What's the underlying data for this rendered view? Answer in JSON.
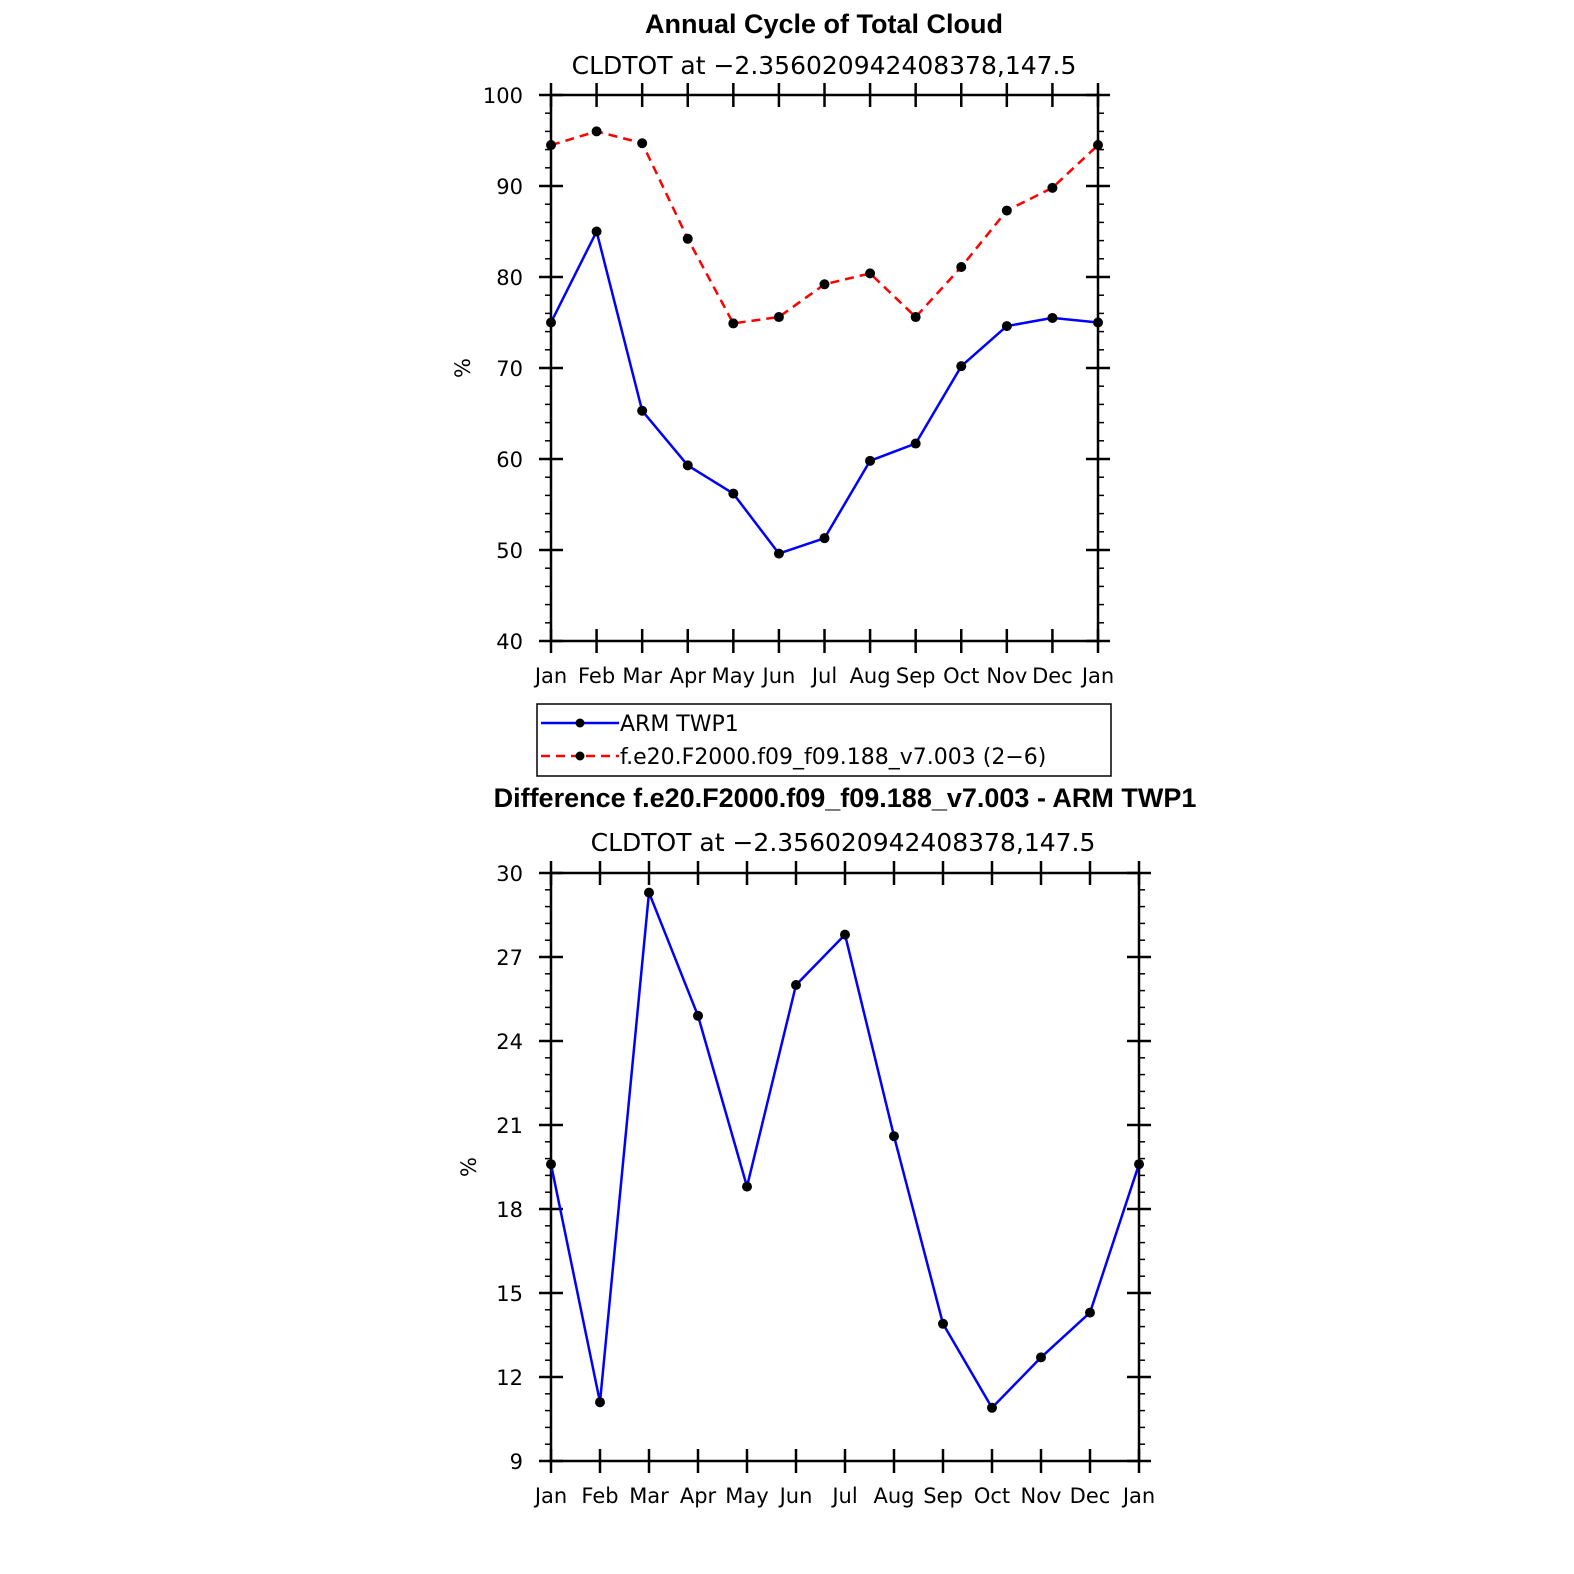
{
  "chart_data": [
    {
      "type": "line",
      "title": "Annual Cycle of Total Cloud",
      "subtitle": "CLDTOT at −2.356020942408378,147.5",
      "ylabel": "%",
      "ylim": [
        40,
        100
      ],
      "yticks": [
        "40",
        "50",
        "60",
        "70",
        "80",
        "90",
        "100"
      ],
      "categories": [
        "Jan",
        "Feb",
        "Mar",
        "Apr",
        "May",
        "Jun",
        "Jul",
        "Aug",
        "Sep",
        "Oct",
        "Nov",
        "Dec",
        "Jan"
      ],
      "series": [
        {
          "name": "ARM TWP1",
          "color": "#0000ff",
          "dashed": false,
          "values": [
            75.0,
            85.0,
            65.3,
            59.3,
            56.2,
            49.6,
            51.3,
            59.8,
            61.7,
            70.2,
            74.6,
            75.5,
            75.0
          ]
        },
        {
          "name": "f.e20.F2000.f09_f09.188_v7.003 (2−6)",
          "color": "#ff0000",
          "dashed": true,
          "values": [
            94.5,
            96.0,
            94.7,
            84.2,
            74.9,
            75.6,
            79.2,
            80.4,
            75.6,
            81.1,
            87.3,
            89.8,
            94.5
          ]
        }
      ],
      "legend": "bottom"
    },
    {
      "type": "line",
      "title": "Difference f.e20.F2000.f09_f09.188_v7.003 - ARM TWP1",
      "subtitle": "CLDTOT at −2.356020942408378,147.5",
      "ylabel": "%",
      "ylim": [
        9,
        30
      ],
      "yticks": [
        "9",
        "12",
        "15",
        "18",
        "21",
        "24",
        "27",
        "30"
      ],
      "categories": [
        "Jan",
        "Feb",
        "Mar",
        "Apr",
        "May",
        "Jun",
        "Jul",
        "Aug",
        "Sep",
        "Oct",
        "Nov",
        "Dec",
        "Jan"
      ],
      "series": [
        {
          "color": "#0000ff",
          "dashed": false,
          "values": [
            19.6,
            11.1,
            29.3,
            24.9,
            18.8,
            26.0,
            27.8,
            20.6,
            13.9,
            10.9,
            12.7,
            14.3,
            19.6
          ]
        }
      ]
    }
  ]
}
